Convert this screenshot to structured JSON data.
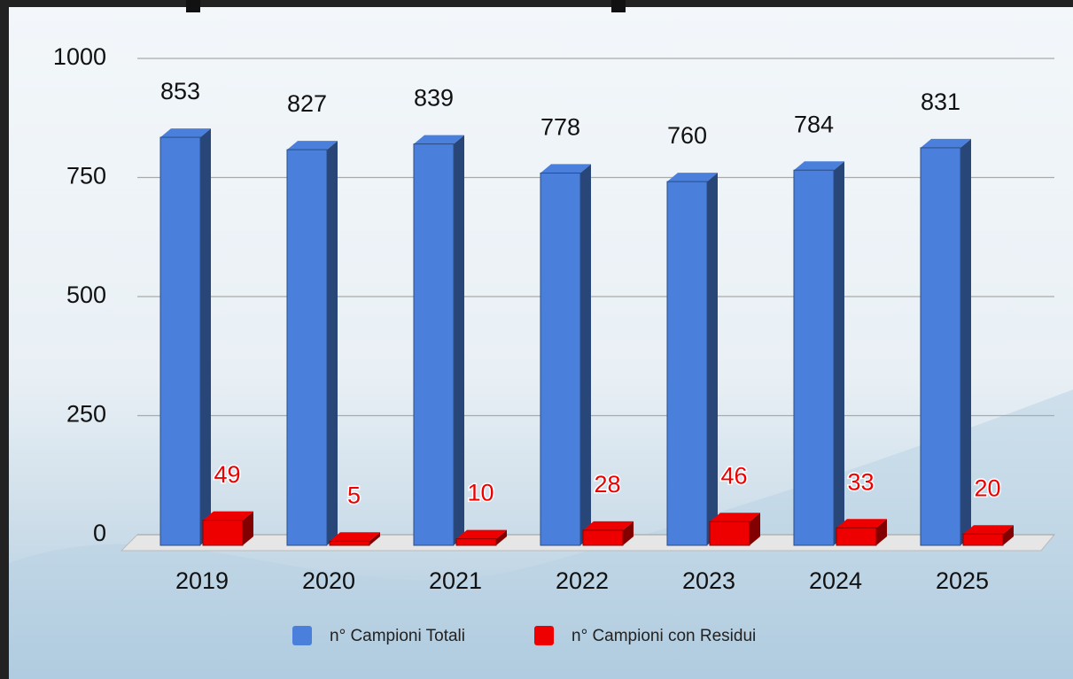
{
  "chart_data": {
    "type": "bar3d",
    "categories": [
      "2019",
      "2020",
      "2021",
      "2022",
      "2023",
      "2024",
      "2025"
    ],
    "series": [
      {
        "name": "n° Campioni Totali",
        "color": "#4a7fdc",
        "values": [
          853,
          827,
          839,
          778,
          760,
          784,
          831
        ]
      },
      {
        "name": "n° Campioni con Residui",
        "color": "#ee0000",
        "values": [
          49,
          5,
          10,
          28,
          46,
          33,
          20
        ]
      }
    ],
    "ylim": [
      0,
      1000
    ],
    "yticks": [
      0,
      250,
      500,
      750,
      1000
    ],
    "grid": true,
    "legend": "bottom"
  }
}
